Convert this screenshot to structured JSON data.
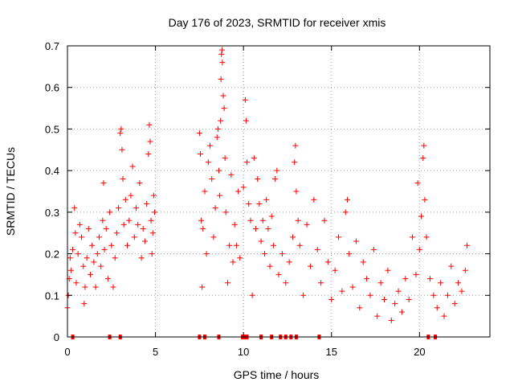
{
  "chart_data": {
    "type": "scatter",
    "title": "Day 176 of 2023, SRMTID for receiver xmis",
    "xlabel": "GPS time / hours",
    "ylabel": "SRMTID / TECUs",
    "xlim": [
      0,
      24
    ],
    "ylim": [
      0,
      0.7
    ],
    "xticks": [
      0,
      5,
      10,
      15,
      20
    ],
    "yticks": [
      0,
      0.1,
      0.2,
      0.3,
      0.4,
      0.5,
      0.6,
      0.7
    ],
    "xtick_labels": [
      "0",
      "5",
      "10",
      "15",
      "20"
    ],
    "ytick_labels": [
      "0",
      "0.1",
      "0.2",
      "0.3",
      "0.4",
      "0.5",
      "0.6",
      "0.7"
    ],
    "grid": true,
    "marker": "+",
    "color": "#ff0000",
    "series": [
      {
        "name": "SRMTID",
        "points": [
          [
            0.0,
            0.07
          ],
          [
            0.05,
            0.1
          ],
          [
            0.1,
            0.14
          ],
          [
            0.15,
            0.19
          ],
          [
            0.2,
            0.16
          ],
          [
            0.3,
            0.21
          ],
          [
            0.4,
            0.31
          ],
          [
            0.45,
            0.25
          ],
          [
            0.5,
            0.13
          ],
          [
            0.6,
            0.2
          ],
          [
            0.7,
            0.27
          ],
          [
            0.8,
            0.24
          ],
          [
            0.9,
            0.17
          ],
          [
            0.95,
            0.08
          ],
          [
            1.0,
            0.12
          ],
          [
            1.1,
            0.19
          ],
          [
            1.2,
            0.26
          ],
          [
            1.3,
            0.15
          ],
          [
            1.4,
            0.22
          ],
          [
            1.5,
            0.18
          ],
          [
            1.6,
            0.12
          ],
          [
            1.7,
            0.2
          ],
          [
            1.8,
            0.24
          ],
          [
            1.9,
            0.17
          ],
          [
            2.0,
            0.28
          ],
          [
            2.05,
            0.37
          ],
          [
            2.1,
            0.21
          ],
          [
            2.2,
            0.26
          ],
          [
            2.3,
            0.14
          ],
          [
            2.4,
            0.3
          ],
          [
            2.5,
            0.22
          ],
          [
            2.6,
            0.12
          ],
          [
            2.7,
            0.19
          ],
          [
            2.8,
            0.25
          ],
          [
            2.9,
            0.31
          ],
          [
            3.0,
            0.49
          ],
          [
            3.05,
            0.5
          ],
          [
            3.1,
            0.45
          ],
          [
            3.15,
            0.38
          ],
          [
            3.2,
            0.27
          ],
          [
            3.3,
            0.33
          ],
          [
            3.4,
            0.22
          ],
          [
            3.5,
            0.28
          ],
          [
            3.6,
            0.34
          ],
          [
            3.7,
            0.41
          ],
          [
            3.8,
            0.24
          ],
          [
            3.9,
            0.31
          ],
          [
            4.0,
            0.27
          ],
          [
            4.1,
            0.37
          ],
          [
            4.2,
            0.19
          ],
          [
            4.3,
            0.26
          ],
          [
            4.4,
            0.23
          ],
          [
            4.5,
            0.32
          ],
          [
            4.6,
            0.44
          ],
          [
            4.65,
            0.51
          ],
          [
            4.7,
            0.47
          ],
          [
            4.75,
            0.28
          ],
          [
            4.8,
            0.2
          ],
          [
            4.85,
            0.25
          ],
          [
            4.9,
            0.34
          ],
          [
            4.95,
            0.3
          ],
          [
            7.5,
            0.49
          ],
          [
            7.55,
            0.44
          ],
          [
            7.6,
            0.28
          ],
          [
            7.65,
            0.12
          ],
          [
            7.7,
            0.26
          ],
          [
            7.8,
            0.35
          ],
          [
            7.9,
            0.2
          ],
          [
            8.0,
            0.42
          ],
          [
            8.1,
            0.46
          ],
          [
            8.2,
            0.38
          ],
          [
            8.3,
            0.24
          ],
          [
            8.4,
            0.31
          ],
          [
            8.5,
            0.48
          ],
          [
            8.55,
            0.5
          ],
          [
            8.6,
            0.4
          ],
          [
            8.65,
            0.34
          ],
          [
            8.7,
            0.52
          ],
          [
            8.72,
            0.62
          ],
          [
            8.75,
            0.68
          ],
          [
            8.78,
            0.69
          ],
          [
            8.8,
            0.66
          ],
          [
            8.85,
            0.58
          ],
          [
            8.9,
            0.55
          ],
          [
            8.95,
            0.43
          ],
          [
            9.0,
            0.3
          ],
          [
            9.1,
            0.13
          ],
          [
            9.2,
            0.22
          ],
          [
            9.3,
            0.39
          ],
          [
            9.4,
            0.18
          ],
          [
            9.5,
            0.27
          ],
          [
            9.6,
            0.22
          ],
          [
            9.7,
            0.35
          ],
          [
            9.8,
            0.19
          ],
          [
            10.0,
            0.36
          ],
          [
            10.1,
            0.57
          ],
          [
            10.15,
            0.52
          ],
          [
            10.2,
            0.42
          ],
          [
            10.3,
            0.32
          ],
          [
            10.4,
            0.28
          ],
          [
            10.5,
            0.1
          ],
          [
            10.6,
            0.43
          ],
          [
            10.7,
            0.26
          ],
          [
            10.8,
            0.38
          ],
          [
            10.9,
            0.32
          ],
          [
            11.0,
            0.23
          ],
          [
            11.1,
            0.28
          ],
          [
            11.2,
            0.2
          ],
          [
            11.3,
            0.33
          ],
          [
            11.4,
            0.26
          ],
          [
            11.5,
            0.17
          ],
          [
            11.6,
            0.29
          ],
          [
            11.7,
            0.22
          ],
          [
            11.8,
            0.38
          ],
          [
            11.9,
            0.4
          ],
          [
            12.0,
            0.15
          ],
          [
            12.2,
            0.2
          ],
          [
            12.4,
            0.13
          ],
          [
            12.6,
            0.18
          ],
          [
            12.8,
            0.24
          ],
          [
            12.9,
            0.42
          ],
          [
            12.95,
            0.46
          ],
          [
            13.0,
            0.35
          ],
          [
            13.1,
            0.28
          ],
          [
            13.2,
            0.22
          ],
          [
            13.4,
            0.1
          ],
          [
            13.6,
            0.27
          ],
          [
            13.8,
            0.17
          ],
          [
            14.0,
            0.33
          ],
          [
            14.2,
            0.21
          ],
          [
            14.4,
            0.13
          ],
          [
            14.6,
            0.28
          ],
          [
            14.8,
            0.18
          ],
          [
            15.0,
            0.09
          ],
          [
            15.2,
            0.16
          ],
          [
            15.4,
            0.24
          ],
          [
            15.6,
            0.11
          ],
          [
            15.8,
            0.3
          ],
          [
            15.9,
            0.33
          ],
          [
            16.0,
            0.2
          ],
          [
            16.2,
            0.12
          ],
          [
            16.4,
            0.23
          ],
          [
            16.6,
            0.07
          ],
          [
            16.8,
            0.18
          ],
          [
            17.0,
            0.14
          ],
          [
            17.2,
            0.1
          ],
          [
            17.4,
            0.21
          ],
          [
            17.6,
            0.05
          ],
          [
            17.8,
            0.13
          ],
          [
            18.0,
            0.09
          ],
          [
            18.2,
            0.16
          ],
          [
            18.4,
            0.04
          ],
          [
            18.6,
            0.08
          ],
          [
            18.8,
            0.11
          ],
          [
            19.0,
            0.06
          ],
          [
            19.2,
            0.14
          ],
          [
            19.4,
            0.09
          ],
          [
            19.6,
            0.24
          ],
          [
            19.8,
            0.15
          ],
          [
            19.9,
            0.37
          ],
          [
            20.0,
            0.21
          ],
          [
            20.1,
            0.29
          ],
          [
            20.2,
            0.43
          ],
          [
            20.25,
            0.46
          ],
          [
            20.3,
            0.33
          ],
          [
            20.4,
            0.24
          ],
          [
            20.6,
            0.14
          ],
          [
            20.8,
            0.1
          ],
          [
            21.0,
            0.07
          ],
          [
            21.2,
            0.13
          ],
          [
            21.4,
            0.05
          ],
          [
            21.6,
            0.1
          ],
          [
            21.8,
            0.17
          ],
          [
            22.0,
            0.08
          ],
          [
            22.2,
            0.13
          ],
          [
            22.4,
            0.11
          ],
          [
            22.6,
            0.16
          ],
          [
            22.7,
            0.22
          ]
        ]
      },
      {
        "name": "zero markers",
        "marker": "square",
        "points": [
          [
            0.3,
            0
          ],
          [
            2.4,
            0
          ],
          [
            3.0,
            0
          ],
          [
            7.5,
            0
          ],
          [
            7.8,
            0
          ],
          [
            8.6,
            0
          ],
          [
            9.95,
            0
          ],
          [
            10.05,
            0
          ],
          [
            10.2,
            0
          ],
          [
            11.0,
            0
          ],
          [
            11.6,
            0
          ],
          [
            12.1,
            0
          ],
          [
            12.4,
            0
          ],
          [
            12.7,
            0
          ],
          [
            13.0,
            0
          ],
          [
            14.3,
            0
          ],
          [
            20.5,
            0
          ],
          [
            20.9,
            0
          ]
        ]
      }
    ]
  }
}
